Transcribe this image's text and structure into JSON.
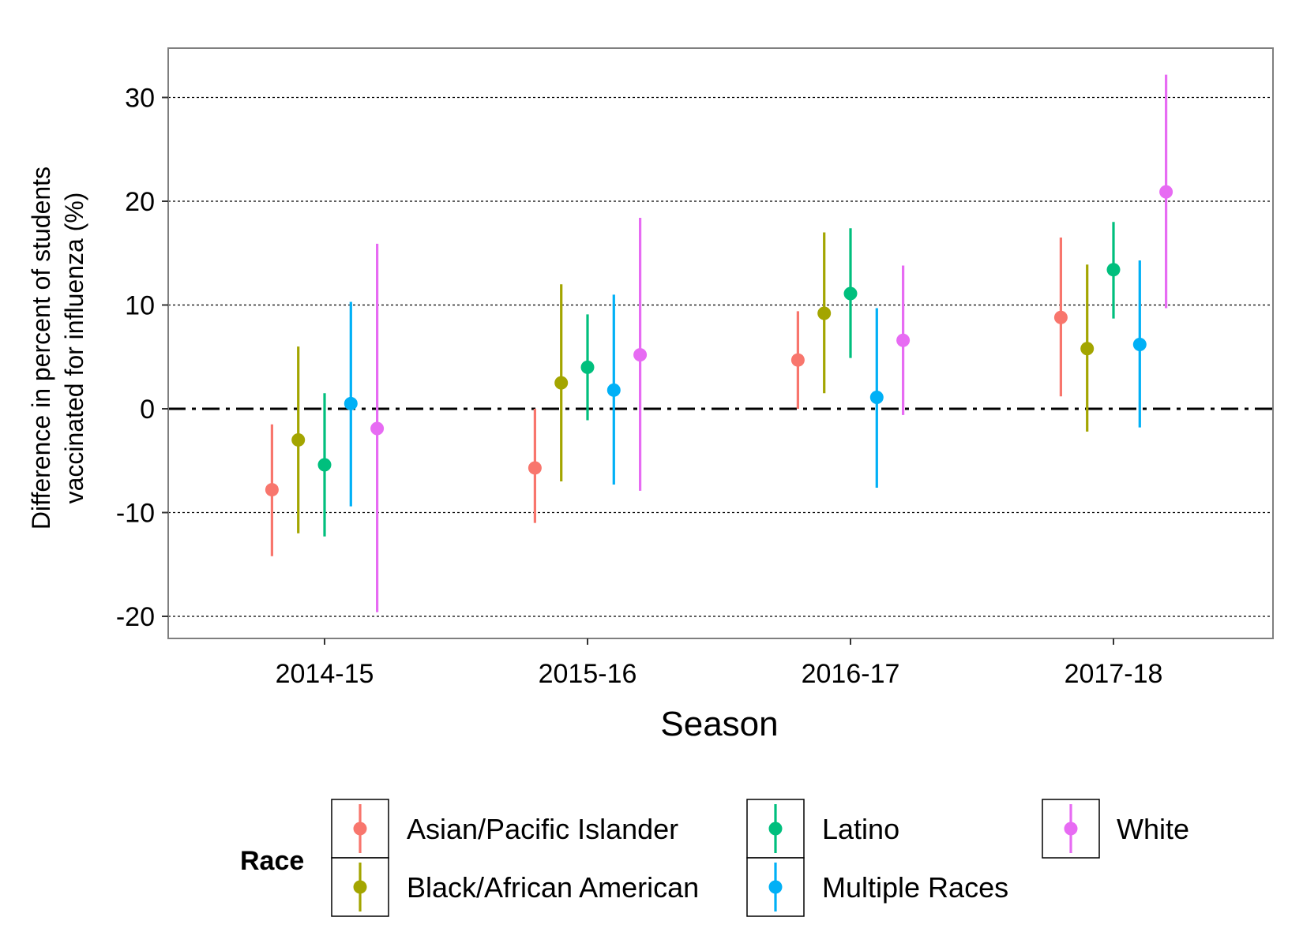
{
  "chart_data": {
    "type": "pointrange",
    "xlabel": "Season",
    "ylabel_lines": [
      "Difference in percent of students",
      "vaccinated for influenza (%)"
    ],
    "ylim": [
      -22,
      35
    ],
    "yticks": [
      -20,
      -10,
      0,
      10,
      20,
      30
    ],
    "ytick_labels": [
      "-20",
      "-10",
      "0",
      "10",
      "20",
      "30"
    ],
    "grid": "horizontal dotted",
    "reference_line": 0,
    "categories": [
      "2014-15",
      "2015-16",
      "2016-17",
      "2017-18"
    ],
    "legend_title": "Race",
    "legend_position": "bottom",
    "series": [
      {
        "name": "Asian/Pacific Islander",
        "color": "#F8766D",
        "points": [
          {
            "x": "2014-15",
            "y": -7.8,
            "lower": -14.2,
            "upper": -1.5
          },
          {
            "x": "2015-16",
            "y": -5.7,
            "lower": -11.0,
            "upper": 0.0
          },
          {
            "x": "2016-17",
            "y": 4.7,
            "lower": 0.0,
            "upper": 9.4
          },
          {
            "x": "2017-18",
            "y": 8.8,
            "lower": 1.2,
            "upper": 16.5
          }
        ]
      },
      {
        "name": "Black/African American",
        "color": "#A3A500",
        "points": [
          {
            "x": "2014-15",
            "y": -3.0,
            "lower": -12.0,
            "upper": 6.0
          },
          {
            "x": "2015-16",
            "y": 2.5,
            "lower": -7.0,
            "upper": 12.0
          },
          {
            "x": "2016-17",
            "y": 9.2,
            "lower": 1.5,
            "upper": 17.0
          },
          {
            "x": "2017-18",
            "y": 5.8,
            "lower": -2.2,
            "upper": 13.9
          }
        ]
      },
      {
        "name": "Latino",
        "color": "#00BF7D",
        "points": [
          {
            "x": "2014-15",
            "y": -5.4,
            "lower": -12.3,
            "upper": 1.5
          },
          {
            "x": "2015-16",
            "y": 4.0,
            "lower": -1.1,
            "upper": 9.1
          },
          {
            "x": "2016-17",
            "y": 11.1,
            "lower": 4.9,
            "upper": 17.4
          },
          {
            "x": "2017-18",
            "y": 13.4,
            "lower": 8.7,
            "upper": 18.0
          }
        ]
      },
      {
        "name": "Multiple Races",
        "color": "#00B0F6",
        "points": [
          {
            "x": "2014-15",
            "y": 0.5,
            "lower": -9.4,
            "upper": 10.3
          },
          {
            "x": "2015-16",
            "y": 1.8,
            "lower": -7.3,
            "upper": 11.0
          },
          {
            "x": "2016-17",
            "y": 1.1,
            "lower": -7.6,
            "upper": 9.7
          },
          {
            "x": "2017-18",
            "y": 6.2,
            "lower": -1.8,
            "upper": 14.3
          }
        ]
      },
      {
        "name": "White",
        "color": "#E76BF3",
        "points": [
          {
            "x": "2014-15",
            "y": -1.9,
            "lower": -19.6,
            "upper": 15.9
          },
          {
            "x": "2015-16",
            "y": 5.2,
            "lower": -7.9,
            "upper": 18.4
          },
          {
            "x": "2016-17",
            "y": 6.6,
            "lower": -0.6,
            "upper": 13.8
          },
          {
            "x": "2017-18",
            "y": 20.9,
            "lower": 9.7,
            "upper": 32.2
          }
        ]
      }
    ]
  }
}
